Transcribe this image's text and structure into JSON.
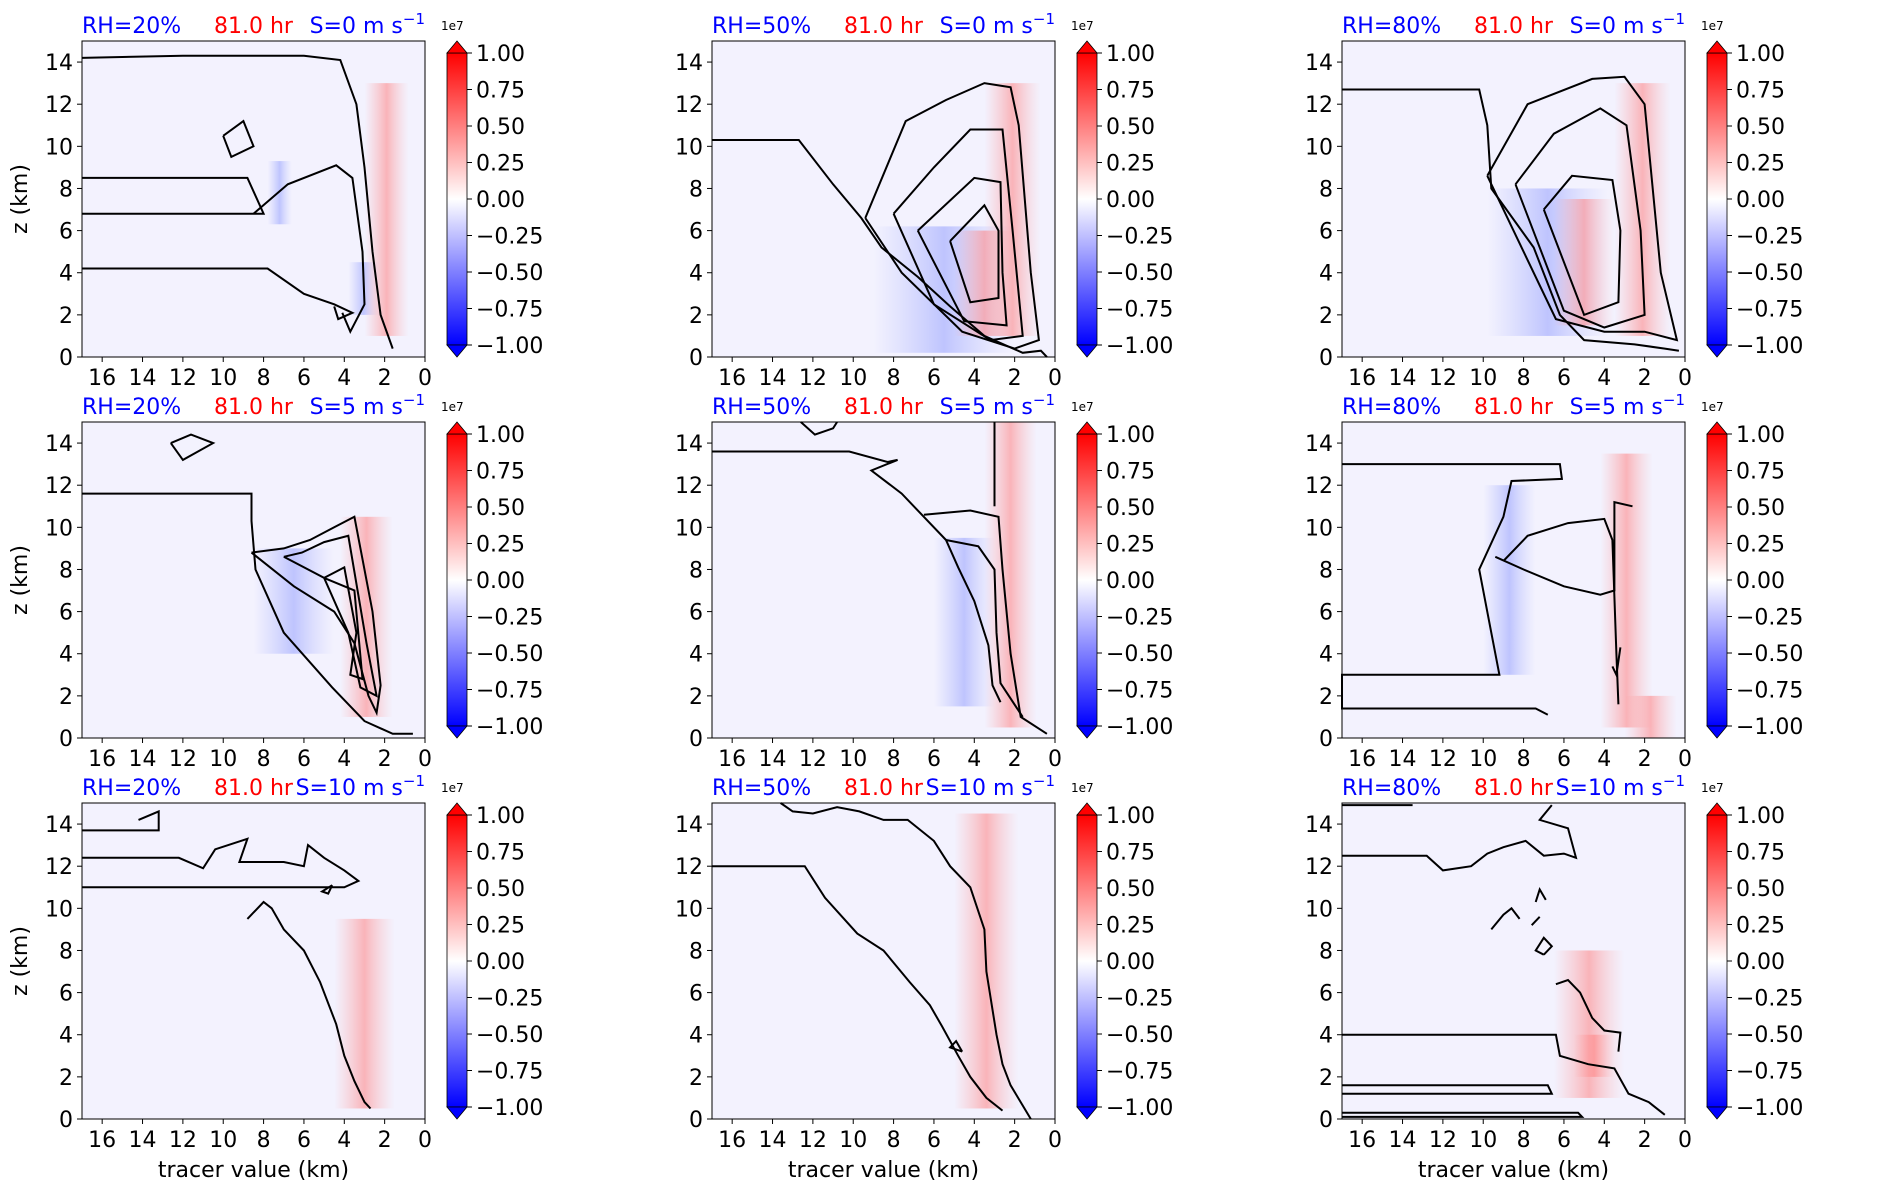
{
  "figure": {
    "colors": {
      "rh_title": "#0000ff",
      "time_title": "#ff0000",
      "shear_title": "#0000ff",
      "contour": "#000000",
      "cmap_low": "#0000ff",
      "cmap_mid": "#ffffff",
      "cmap_high": "#ff0000"
    }
  },
  "chart_data": [
    {
      "type": "heatmap",
      "row": 0,
      "col": 0,
      "rh": "RH=20%",
      "time": "81.0 hr",
      "shear": "S=0 m s",
      "shear_exp": "−1",
      "ylabel": "z (km)",
      "xlabel": "",
      "xlim": [
        17,
        0
      ],
      "ylim": [
        0,
        15
      ],
      "xticks": [
        "16",
        "14",
        "12",
        "10",
        "8",
        "6",
        "4",
        "2",
        "0"
      ],
      "yticks": [
        "0",
        "2",
        "4",
        "6",
        "8",
        "10",
        "12",
        "14"
      ],
      "colorbar": {
        "exponent": "1e7",
        "ticks": [
          "1.00",
          "0.75",
          "0.50",
          "0.25",
          "0.00",
          "−0.25",
          "−0.50",
          "−0.75",
          "−1.00"
        ],
        "range": [
          -1,
          1
        ]
      }
    },
    {
      "type": "heatmap",
      "row": 0,
      "col": 1,
      "rh": "RH=50%",
      "time": "81.0 hr",
      "shear": "S=0 m s",
      "shear_exp": "−1",
      "ylabel": "",
      "xlabel": "",
      "xlim": [
        17,
        0
      ],
      "ylim": [
        0,
        15
      ],
      "xticks": [
        "16",
        "14",
        "12",
        "10",
        "8",
        "6",
        "4",
        "2",
        "0"
      ],
      "yticks": [
        "0",
        "2",
        "4",
        "6",
        "8",
        "10",
        "12",
        "14"
      ],
      "colorbar": {
        "exponent": "1e7",
        "ticks": [
          "1.00",
          "0.75",
          "0.50",
          "0.25",
          "0.00",
          "−0.25",
          "−0.50",
          "−0.75",
          "−1.00"
        ],
        "range": [
          -1,
          1
        ]
      }
    },
    {
      "type": "heatmap",
      "row": 0,
      "col": 2,
      "rh": "RH=80%",
      "time": "81.0 hr",
      "shear": "S=0 m s",
      "shear_exp": "−1",
      "ylabel": "",
      "xlabel": "",
      "xlim": [
        17,
        0
      ],
      "ylim": [
        0,
        15
      ],
      "xticks": [
        "16",
        "14",
        "12",
        "10",
        "8",
        "6",
        "4",
        "2",
        "0"
      ],
      "yticks": [
        "0",
        "2",
        "4",
        "6",
        "8",
        "10",
        "12",
        "14"
      ],
      "colorbar": {
        "exponent": "1e7",
        "ticks": [
          "1.00",
          "0.75",
          "0.50",
          "0.25",
          "0.00",
          "−0.25",
          "−0.50",
          "−0.75",
          "−1.00"
        ],
        "range": [
          -1,
          1
        ]
      }
    },
    {
      "type": "heatmap",
      "row": 1,
      "col": 0,
      "rh": "RH=20%",
      "time": "81.0 hr",
      "shear": "S=5 m s",
      "shear_exp": "−1",
      "ylabel": "z (km)",
      "xlabel": "",
      "xlim": [
        17,
        0
      ],
      "ylim": [
        0,
        15
      ],
      "xticks": [
        "16",
        "14",
        "12",
        "10",
        "8",
        "6",
        "4",
        "2",
        "0"
      ],
      "yticks": [
        "0",
        "2",
        "4",
        "6",
        "8",
        "10",
        "12",
        "14"
      ],
      "colorbar": {
        "exponent": "1e7",
        "ticks": [
          "1.00",
          "0.75",
          "0.50",
          "0.25",
          "0.00",
          "−0.25",
          "−0.50",
          "−0.75",
          "−1.00"
        ],
        "range": [
          -1,
          1
        ]
      }
    },
    {
      "type": "heatmap",
      "row": 1,
      "col": 1,
      "rh": "RH=50%",
      "time": "81.0 hr",
      "shear": "S=5 m s",
      "shear_exp": "−1",
      "ylabel": "",
      "xlabel": "",
      "xlim": [
        17,
        0
      ],
      "ylim": [
        0,
        15
      ],
      "xticks": [
        "16",
        "14",
        "12",
        "10",
        "8",
        "6",
        "4",
        "2",
        "0"
      ],
      "yticks": [
        "0",
        "2",
        "4",
        "6",
        "8",
        "10",
        "12",
        "14"
      ],
      "colorbar": {
        "exponent": "1e7",
        "ticks": [
          "1.00",
          "0.75",
          "0.50",
          "0.25",
          "0.00",
          "−0.25",
          "−0.50",
          "−0.75",
          "−1.00"
        ],
        "range": [
          -1,
          1
        ]
      }
    },
    {
      "type": "heatmap",
      "row": 1,
      "col": 2,
      "rh": "RH=80%",
      "time": "81.0 hr",
      "shear": "S=5 m s",
      "shear_exp": "−1",
      "ylabel": "",
      "xlabel": "",
      "xlim": [
        17,
        0
      ],
      "ylim": [
        0,
        15
      ],
      "xticks": [
        "16",
        "14",
        "12",
        "10",
        "8",
        "6",
        "4",
        "2",
        "0"
      ],
      "yticks": [
        "0",
        "2",
        "4",
        "6",
        "8",
        "10",
        "12",
        "14"
      ],
      "colorbar": {
        "exponent": "1e7",
        "ticks": [
          "1.00",
          "0.75",
          "0.50",
          "0.25",
          "0.00",
          "−0.25",
          "−0.50",
          "−0.75",
          "−1.00"
        ],
        "range": [
          -1,
          1
        ]
      }
    },
    {
      "type": "heatmap",
      "row": 2,
      "col": 0,
      "rh": "RH=20%",
      "time": "81.0 hr",
      "shear": "S=10 m s",
      "shear_exp": "−1",
      "ylabel": "z (km)",
      "xlabel": "tracer value (km)",
      "xlim": [
        17,
        0
      ],
      "ylim": [
        0,
        15
      ],
      "xticks": [
        "16",
        "14",
        "12",
        "10",
        "8",
        "6",
        "4",
        "2",
        "0"
      ],
      "yticks": [
        "0",
        "2",
        "4",
        "6",
        "8",
        "10",
        "12",
        "14"
      ],
      "colorbar": {
        "exponent": "1e7",
        "ticks": [
          "1.00",
          "0.75",
          "0.50",
          "0.25",
          "0.00",
          "−0.25",
          "−0.50",
          "−0.75",
          "−1.00"
        ],
        "range": [
          -1,
          1
        ]
      }
    },
    {
      "type": "heatmap",
      "row": 2,
      "col": 1,
      "rh": "RH=50%",
      "time": "81.0 hr",
      "shear": "S=10 m s",
      "shear_exp": "−1",
      "ylabel": "",
      "xlabel": "tracer value (km)",
      "xlim": [
        17,
        0
      ],
      "ylim": [
        0,
        15
      ],
      "xticks": [
        "16",
        "14",
        "12",
        "10",
        "8",
        "6",
        "4",
        "2",
        "0"
      ],
      "yticks": [
        "0",
        "2",
        "4",
        "6",
        "8",
        "10",
        "12",
        "14"
      ],
      "colorbar": {
        "exponent": "1e7",
        "ticks": [
          "1.00",
          "0.75",
          "0.50",
          "0.25",
          "0.00",
          "−0.25",
          "−0.50",
          "−0.75",
          "−1.00"
        ],
        "range": [
          -1,
          1
        ]
      }
    },
    {
      "type": "heatmap",
      "row": 2,
      "col": 2,
      "rh": "RH=80%",
      "time": "81.0 hr",
      "shear": "S=10 m s",
      "shear_exp": "−1",
      "ylabel": "",
      "xlabel": "tracer value (km)",
      "xlim": [
        17,
        0
      ],
      "ylim": [
        0,
        15
      ],
      "xticks": [
        "16",
        "14",
        "12",
        "10",
        "8",
        "6",
        "4",
        "2",
        "0"
      ],
      "yticks": [
        "0",
        "2",
        "4",
        "6",
        "8",
        "10",
        "12",
        "14"
      ],
      "colorbar": {
        "exponent": "1e7",
        "ticks": [
          "1.00",
          "0.75",
          "0.50",
          "0.25",
          "0.00",
          "−0.25",
          "−0.50",
          "−0.75",
          "−1.00"
        ],
        "range": [
          -1,
          1
        ]
      }
    }
  ]
}
